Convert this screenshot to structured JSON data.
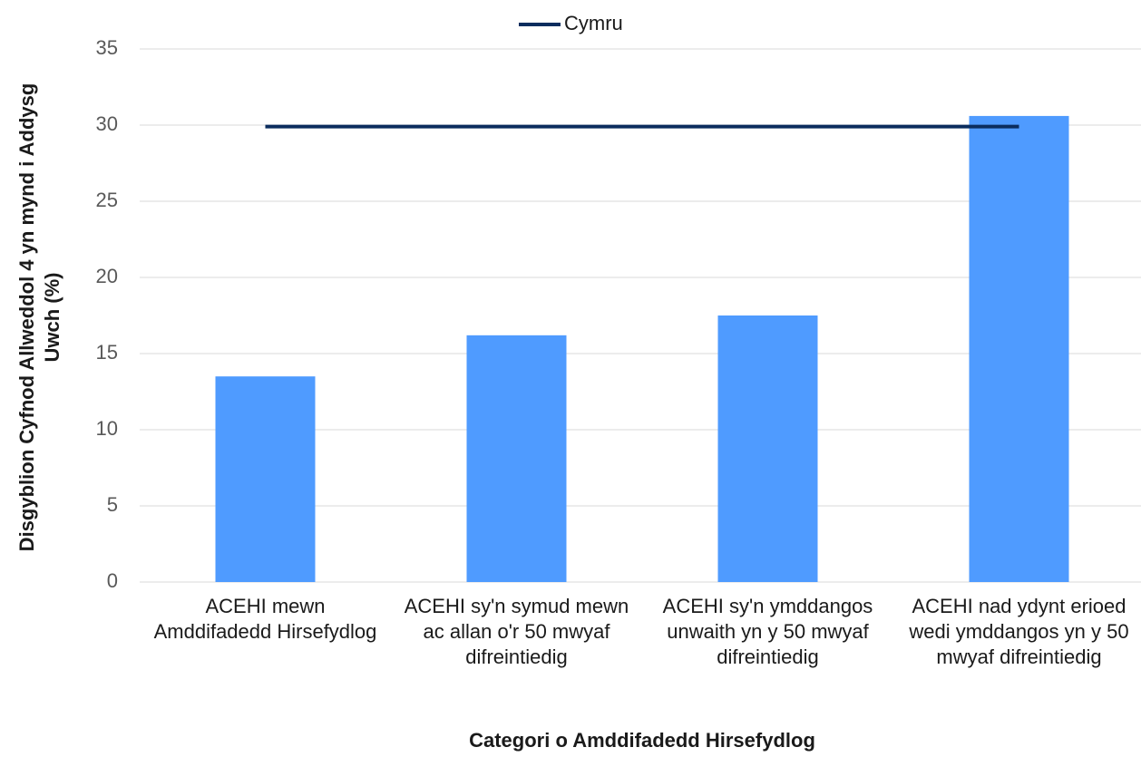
{
  "chart_data": {
    "type": "bar",
    "title": null,
    "x_label": "Categori o Amddifadedd Hirsefydlog",
    "y_label": "Disgyblion Cyfnod Allweddol 4 yn mynd i Addysg Uwch (%)",
    "categories": [
      "ACEHI mewn Amddifadedd Hirsefydlog",
      "ACEHI sy'n symud mewn ac allan o'r 50 mwyaf difreintiedig",
      "ACEHI sy'n ymddangos unwaith yn y 50 mwyaf difreintiedig",
      "ACEHI nad ydynt erioed wedi ymddangos yn y 50 mwyaf difreintiedig"
    ],
    "values": [
      13.5,
      16.2,
      17.5,
      30.6
    ],
    "color": "#4f9bff",
    "series": [
      {
        "name": "Cymru",
        "type": "line",
        "color": "#0b2d5e",
        "values": [
          29.9,
          29.9,
          29.9,
          29.9
        ]
      }
    ],
    "ylim": [
      0,
      35
    ],
    "yticks": [
      0,
      5,
      10,
      15,
      20,
      25,
      30,
      35
    ],
    "grid": true,
    "legend": "top"
  }
}
